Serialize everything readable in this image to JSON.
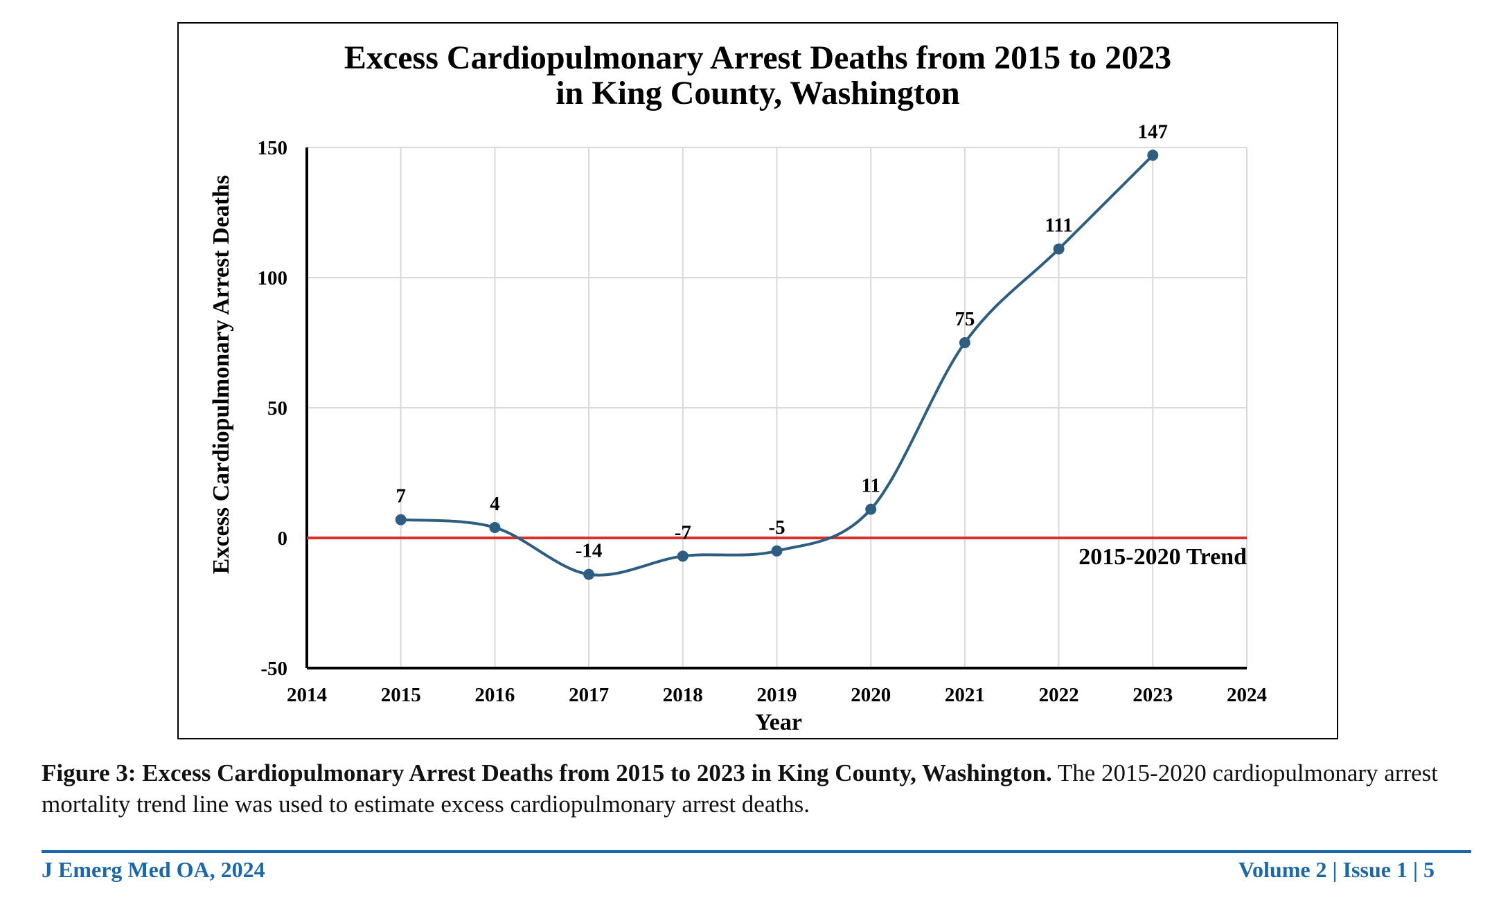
{
  "chart_data": {
    "type": "line",
    "title_line1": "Excess Cardiopulmonary Arrest Deaths from 2015 to 2023",
    "title_line2": "in King County, Washington",
    "xlabel": "Year",
    "ylabel": "Excess Cardiopulmonary Arrest Deaths",
    "xlim": [
      2014,
      2024
    ],
    "ylim": [
      -50,
      150
    ],
    "x_ticks": [
      "2014",
      "2015",
      "2016",
      "2017",
      "2018",
      "2019",
      "2020",
      "2021",
      "2022",
      "2023",
      "2024"
    ],
    "y_ticks": [
      "-50",
      "0",
      "50",
      "100",
      "150"
    ],
    "grid": true,
    "series": [
      {
        "x": [
          2015,
          2016,
          2017,
          2018,
          2019,
          2020,
          2021,
          2022,
          2023
        ],
        "values": [
          7,
          4,
          -14,
          -7,
          -5,
          11,
          75,
          111,
          147
        ],
        "data_labels": [
          "7",
          "4",
          "-14",
          "-7",
          "-5",
          "11",
          "75",
          "111",
          "147"
        ],
        "color": "#2d5e82",
        "smooth": true
      }
    ],
    "reference_line": {
      "label": "2015-2020 Trend",
      "y": 0,
      "color": "#d9302b"
    }
  },
  "caption": {
    "bold_text": "Figure 3: Excess Cardiopulmonary Arrest Deaths from 2015 to 2023 in King County, Washington.",
    "text": " The 2015-2020 cardiopulmonary arrest mortality trend line was used to estimate excess cardiopulmonary arrest deaths."
  },
  "footer": {
    "journal": "J Emerg Med OA, 2024",
    "issue": "Volume 2 | Issue 1 | 5"
  },
  "colors": {
    "footer_accent": "#1b67aa",
    "grid": "#d9d9d9"
  }
}
